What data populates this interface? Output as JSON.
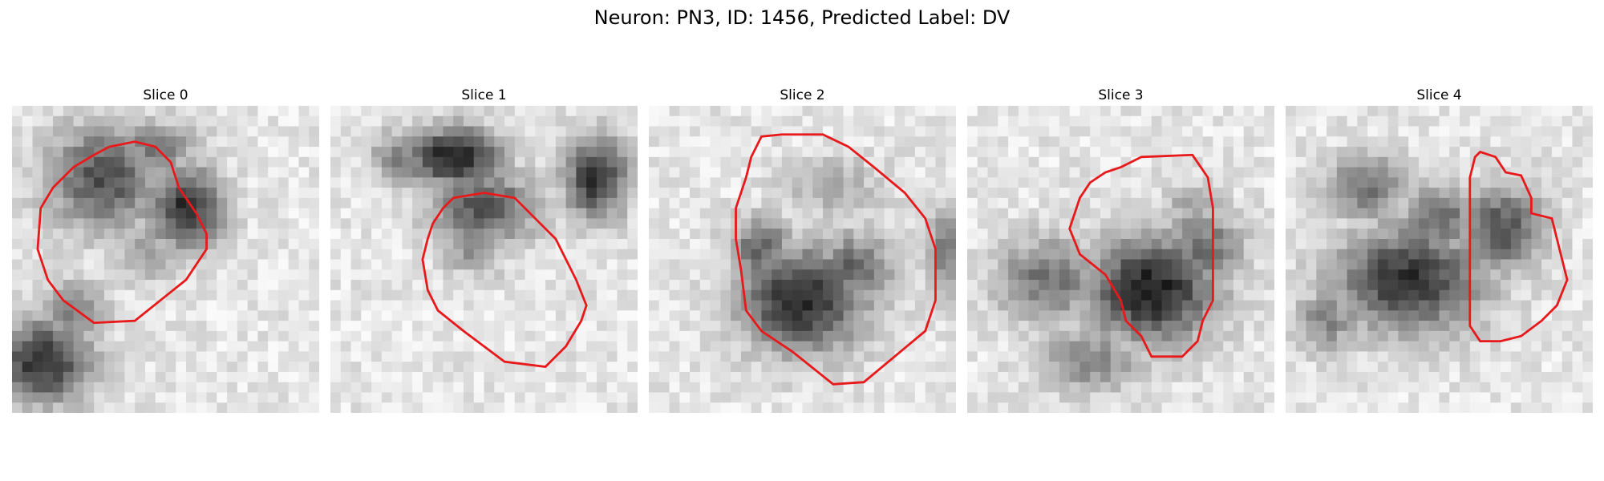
{
  "figure": {
    "title": "Neuron: PN3, ID: 1456, Predicted Label: DV"
  },
  "colors": {
    "contour": "#e8191b",
    "background": "#ffffff"
  },
  "panels": [
    {
      "title": "Slice 0",
      "blobs": [
        [
          9,
          7,
          5.5,
          5,
          0.7
        ],
        [
          17,
          10,
          3.5,
          4,
          0.85
        ],
        [
          14,
          4,
          4,
          2.5,
          0.5
        ],
        [
          3,
          25,
          4.5,
          4,
          0.85
        ],
        [
          6,
          20,
          3,
          3,
          0.5
        ],
        [
          13,
          14,
          3,
          3,
          0.35
        ]
      ],
      "contour": [
        [
          9.5,
          4
        ],
        [
          12,
          3.5
        ],
        [
          14,
          4
        ],
        [
          15.5,
          5.5
        ],
        [
          16.3,
          8
        ],
        [
          18,
          10.5
        ],
        [
          19,
          12.5
        ],
        [
          19,
          14
        ],
        [
          17,
          17
        ],
        [
          14.5,
          19
        ],
        [
          12,
          21
        ],
        [
          8,
          21.2
        ],
        [
          5,
          19
        ],
        [
          3.5,
          17
        ],
        [
          2.5,
          14
        ],
        [
          2.8,
          10
        ],
        [
          4,
          8
        ],
        [
          6,
          6
        ],
        [
          8,
          4.8
        ]
      ]
    },
    {
      "title": "Slice 1",
      "blobs": [
        [
          12,
          5,
          4.5,
          2.8,
          0.95
        ],
        [
          15,
          10,
          5,
          3.5,
          0.7
        ],
        [
          26,
          7,
          3,
          4,
          0.85
        ],
        [
          7,
          5,
          3,
          2.5,
          0.5
        ],
        [
          14,
          14,
          3,
          2.5,
          0.4
        ]
      ],
      "contour": [
        [
          12,
          9
        ],
        [
          15,
          8.5
        ],
        [
          18,
          9
        ],
        [
          20,
          11
        ],
        [
          22,
          13
        ],
        [
          23,
          15
        ],
        [
          24,
          17
        ],
        [
          25,
          19.5
        ],
        [
          24.5,
          21
        ],
        [
          23,
          23.5
        ],
        [
          21,
          25.5
        ],
        [
          17,
          25
        ],
        [
          13,
          22
        ],
        [
          10.5,
          20
        ],
        [
          9.5,
          18
        ],
        [
          9,
          15
        ],
        [
          9.5,
          13
        ],
        [
          10,
          11.5
        ],
        [
          11,
          10
        ]
      ]
    },
    {
      "title": "Slice 2",
      "blobs": [
        [
          15,
          19,
          6,
          5,
          0.9
        ],
        [
          11,
          14,
          3,
          3,
          0.6
        ],
        [
          20,
          16,
          4,
          3.5,
          0.6
        ],
        [
          29,
          14,
          2,
          4,
          0.5
        ],
        [
          18,
          8,
          5,
          3,
          0.25
        ]
      ],
      "contour": [
        [
          11,
          3
        ],
        [
          13,
          2.8
        ],
        [
          17,
          2.8
        ],
        [
          19.5,
          4
        ],
        [
          22,
          6
        ],
        [
          25,
          8.5
        ],
        [
          27,
          11
        ],
        [
          28,
          14
        ],
        [
          28,
          19
        ],
        [
          27,
          22
        ],
        [
          24,
          24.5
        ],
        [
          21,
          27
        ],
        [
          18,
          27.2
        ],
        [
          14,
          24
        ],
        [
          11,
          22
        ],
        [
          9.5,
          20
        ],
        [
          9,
          16
        ],
        [
          8.5,
          13
        ],
        [
          8.5,
          10
        ],
        [
          9.5,
          7
        ],
        [
          10,
          5
        ]
      ]
    },
    {
      "title": "Slice 3",
      "blobs": [
        [
          18,
          18,
          6,
          5,
          0.95
        ],
        [
          8,
          17,
          5,
          4,
          0.55
        ],
        [
          23,
          14,
          4,
          4,
          0.55
        ],
        [
          12,
          25,
          5,
          3,
          0.45
        ],
        [
          22,
          10,
          3,
          2.5,
          0.3
        ]
      ],
      "contour": [
        [
          17,
          5
        ],
        [
          22,
          4.8
        ],
        [
          23.5,
          7
        ],
        [
          24,
          10
        ],
        [
          24,
          14
        ],
        [
          24,
          19
        ],
        [
          23,
          21
        ],
        [
          22.5,
          23
        ],
        [
          21,
          24.5
        ],
        [
          18,
          24.5
        ],
        [
          17,
          22.5
        ],
        [
          15.5,
          21
        ],
        [
          15,
          19
        ],
        [
          13.5,
          16.5
        ],
        [
          11,
          14.5
        ],
        [
          10,
          12
        ],
        [
          11,
          9
        ],
        [
          12,
          7.5
        ],
        [
          13.5,
          6.5
        ],
        [
          15,
          6
        ]
      ]
    },
    {
      "title": "Slice 4",
      "blobs": [
        [
          12,
          17,
          7,
          5,
          0.85
        ],
        [
          21,
          12,
          4,
          4,
          0.7
        ],
        [
          8,
          8,
          4,
          3,
          0.55
        ],
        [
          15,
          11,
          3.5,
          3,
          0.6
        ],
        [
          4,
          21,
          3,
          3,
          0.45
        ]
      ],
      "contour": [
        [
          19,
          4.5
        ],
        [
          20.5,
          5
        ],
        [
          21.5,
          6.5
        ],
        [
          23,
          6.8
        ],
        [
          24,
          9
        ],
        [
          24,
          10.5
        ],
        [
          26,
          11
        ],
        [
          26.5,
          13
        ],
        [
          27,
          15
        ],
        [
          27.5,
          17
        ],
        [
          26.5,
          19.5
        ],
        [
          25,
          21
        ],
        [
          23,
          22.5
        ],
        [
          21,
          23
        ],
        [
          19,
          23
        ],
        [
          18,
          21.5
        ],
        [
          18,
          18.5
        ],
        [
          18,
          14
        ],
        [
          18,
          10
        ],
        [
          18,
          7
        ],
        [
          18.5,
          5
        ]
      ]
    }
  ]
}
